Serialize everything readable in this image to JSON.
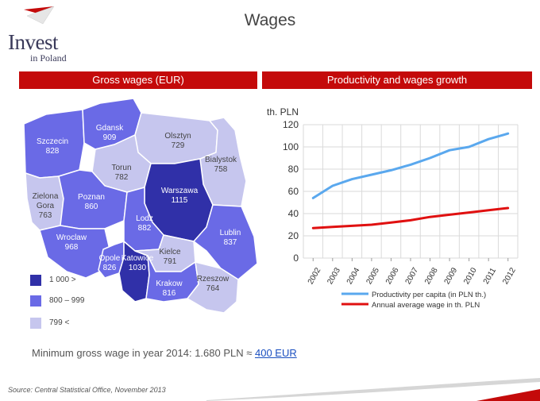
{
  "logo": {
    "main": "Invest",
    "sub": "in Poland"
  },
  "page_title": "Wages",
  "left_header": "Gross wages (EUR)",
  "right_header": "Productivity and wages growth",
  "map": {
    "regions": [
      {
        "id": "szczecin",
        "name": "Szczecin",
        "value": "828"
      },
      {
        "id": "gdansk",
        "name": "Gdansk",
        "value": "909"
      },
      {
        "id": "olsztyn",
        "name": "Olsztyn",
        "value": "729"
      },
      {
        "id": "bialystok",
        "name": "Bialystok",
        "value": "758"
      },
      {
        "id": "torun",
        "name": "Torun",
        "value": "782"
      },
      {
        "id": "zielona",
        "name": "Zielona",
        "name2": "Gora",
        "value": "763"
      },
      {
        "id": "poznan",
        "name": "Poznan",
        "value": "860"
      },
      {
        "id": "warszawa",
        "name": "Warszawa",
        "value": "1115"
      },
      {
        "id": "lodz",
        "name": "Lodz",
        "value": "882"
      },
      {
        "id": "lublin",
        "name": "Lublin",
        "value": "837"
      },
      {
        "id": "wroclaw",
        "name": "Wroclaw",
        "value": "968"
      },
      {
        "id": "opole",
        "name": "Opole",
        "value": "826"
      },
      {
        "id": "katowice",
        "name": "Katowice",
        "value": "1030"
      },
      {
        "id": "kielce",
        "name": "Kielce",
        "value": "791"
      },
      {
        "id": "krakow",
        "name": "Krakow",
        "value": "816"
      },
      {
        "id": "rzeszow",
        "name": "Rzeszow",
        "value": "764"
      }
    ],
    "colors": {
      "high": "#3030a8",
      "mid": "#6a6ae6",
      "low": "#c6c6ee"
    },
    "legend": [
      {
        "label": "1 000 >",
        "color": "#3030a8"
      },
      {
        "label": "800 – 999",
        "color": "#6a6ae6"
      },
      {
        "label": "799 <",
        "color": "#c6c6ee"
      }
    ]
  },
  "chart_data": {
    "type": "line",
    "ylabel": "th. PLN",
    "ylim": [
      0,
      120
    ],
    "yticks": [
      0,
      20,
      40,
      60,
      80,
      100,
      120
    ],
    "x": [
      "2002",
      "2003",
      "2004",
      "2005",
      "2006",
      "2007",
      "2008",
      "2009",
      "2010",
      "2011",
      "2012"
    ],
    "grid": true,
    "legend_position": "bottom",
    "series": [
      {
        "name": "Productivity per capita (in PLN th.)",
        "color": "#5aa8ee",
        "values": [
          54,
          65,
          71,
          75,
          79,
          84,
          90,
          97,
          100,
          107,
          112
        ]
      },
      {
        "name": "Annual average wage in th. PLN",
        "color": "#e01010",
        "values": [
          27,
          28,
          29,
          30,
          32,
          34,
          37,
          39,
          41,
          43,
          45
        ]
      }
    ]
  },
  "min_wage": {
    "text": "Minimum gross wage in year 2014: 1.680 PLN ≈ ",
    "link": "400 EUR"
  },
  "source": "Source: Central Statistical Office, November 2013"
}
